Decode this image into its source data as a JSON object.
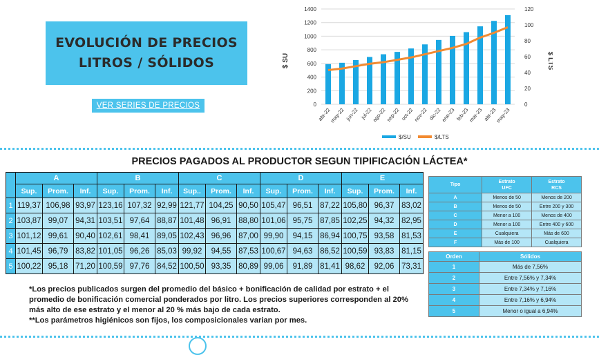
{
  "header": {
    "title_line1": "EVOLUCIÓN DE PRECIOS",
    "title_line2": "LITROS / SÓLIDOS",
    "series_link": "VER SERIES DE PRECIOS"
  },
  "colors": {
    "accent": "#4cc3ec",
    "cell": "#b4e6f7",
    "line": "#f28a30",
    "bar": "#1aa7e3"
  },
  "chart_data": {
    "type": "bar",
    "categories": [
      "abr-22",
      "may-22",
      "jun-22",
      "jul-22",
      "ago-22",
      "sep-22",
      "oct-22",
      "nov-22",
      "dic-22",
      "ene-23",
      "feb-23",
      "mar-23",
      "abr-23",
      "may-23"
    ],
    "series": [
      {
        "name": "$/SU",
        "type": "bar",
        "axis": "left",
        "values": [
          590,
          610,
          650,
          695,
          735,
          770,
          820,
          880,
          945,
          1005,
          1060,
          1145,
          1225,
          1310
        ]
      },
      {
        "name": "$/LTS",
        "type": "line",
        "axis": "right",
        "values": [
          43,
          45,
          48,
          51,
          53,
          56,
          59,
          63,
          67,
          71,
          76,
          84,
          90,
          97
        ]
      }
    ],
    "ylabel": "$ SU",
    "y2label": "$ LTS",
    "ylim": [
      0,
      1400
    ],
    "yticks": [
      0,
      200,
      400,
      600,
      800,
      1000,
      1200,
      1400
    ],
    "y2lim": [
      0,
      120
    ],
    "y2ticks": [
      0,
      20,
      40,
      60,
      80,
      100,
      120
    ],
    "grid": true,
    "legend": "bottom"
  },
  "subtitle": "PRECIOS PAGADOS AL PRODUCTOR SEGUN TIPIFICACIÓN LÁCTEA*",
  "price_table": {
    "groups": [
      "A",
      "B",
      "C",
      "D",
      "E"
    ],
    "subheaders": [
      [
        "Sup.",
        "Prom.",
        "Inf."
      ],
      [
        "Sup.",
        "Prom.",
        "Inf."
      ],
      [
        "Sup..",
        "Prom.",
        "Inf."
      ],
      [
        "Sup.",
        "Prom.",
        "Inf."
      ],
      [
        "Sup.",
        "Prom.",
        "Inf."
      ]
    ],
    "rows": [
      {
        "idx": "1",
        "cells": [
          "119,37",
          "106,98",
          "93,97",
          "123,16",
          "107,32",
          "92,99",
          "121,77",
          "104,25",
          "90,50",
          "105,47",
          "96,51",
          "87,22",
          "105,80",
          "96,37",
          "83,02"
        ]
      },
      {
        "idx": "2",
        "cells": [
          "103,87",
          "99,07",
          "94,31",
          "103,51",
          "97,64",
          "88,87",
          "101,48",
          "96,91",
          "88,80",
          "101,06",
          "95,75",
          "87,85",
          "102,25",
          "94,32",
          "82,95"
        ]
      },
      {
        "idx": "3",
        "cells": [
          "101,12",
          "99,61",
          "90,40",
          "102,61",
          "98,41",
          "89,05",
          "102,43",
          "96,96",
          "87,00",
          "99,90",
          "94,15",
          "86,94",
          "100,75",
          "93,58",
          "81,53"
        ]
      },
      {
        "idx": "4",
        "cells": [
          "101,45",
          "96,79",
          "83,82",
          "101,05",
          "96,26",
          "85,03",
          "99,92",
          "94,55",
          "87,53",
          "100,67",
          "94,63",
          "86,52",
          "100,59",
          "93,83",
          "81,15"
        ]
      },
      {
        "idx": "5",
        "cells": [
          "100,22",
          "95,18",
          "71,20",
          "100,59",
          "97,76",
          "84,52",
          "100,50",
          "93,35",
          "80,89",
          "99,06",
          "91,89",
          "81,41",
          "98,62",
          "92,06",
          "73,31"
        ]
      }
    ]
  },
  "tipo_table": {
    "headers": [
      "Tipo",
      "Estrato\nUFC",
      "Estrato\nRCS"
    ],
    "rows": [
      [
        "A",
        "Menos de 50",
        "Menos de 200"
      ],
      [
        "B",
        "Menos de 50",
        "Entre 200 y 300"
      ],
      [
        "C",
        "Menor a 100",
        "Menos de 400"
      ],
      [
        "D",
        "Menor a 100",
        "Entre 400 y 600"
      ],
      [
        "E",
        "Cualquiera",
        "Más de 600"
      ],
      [
        "F",
        "Más de 100",
        "Cualquiera"
      ]
    ]
  },
  "orden_table": {
    "headers": [
      "Orden",
      "Sólidos"
    ],
    "rows": [
      [
        "1",
        "Más de 7,56%"
      ],
      [
        "2",
        "Entre 7,56% y 7,34%"
      ],
      [
        "3",
        "Entre 7,34% y 7,16%"
      ],
      [
        "4",
        "Entre 7,16% y 6,94%"
      ],
      [
        "5",
        "Menor o igual a 6,94%"
      ]
    ]
  },
  "notes": {
    "note1": "*Los precios publicados surgen del promedio del básico + bonificación de calidad por estrato + el promedio de bonificación comercial ponderados por litro. Los precios superiores corresponden al 20% más alto de ese estrato y el menor al 20 % más bajo de cada estrato.",
    "note2": "**Los parámetros higiénicos son fijos, los composicionales varian por mes."
  }
}
